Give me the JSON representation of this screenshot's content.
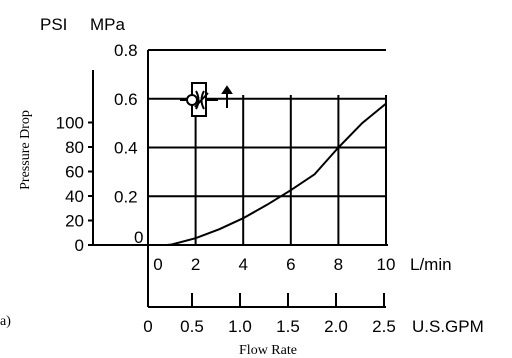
{
  "chart_data": {
    "type": "line",
    "xlabel": "Flow Rate",
    "ylabel": "Pressure Drop",
    "x_unit_primary": "L/min",
    "x_unit_secondary": "U.S.GPM",
    "y_unit_left": "PSI",
    "y_unit_right": "MPa",
    "x_ticks_lpm": [
      "0",
      "2",
      "4",
      "6",
      "8",
      "10"
    ],
    "x_ticks_gpm": [
      "0",
      "0.5",
      "1.0",
      "1.5",
      "2.0",
      "2.5"
    ],
    "y_ticks_psi": [
      "0",
      "20",
      "40",
      "60",
      "80",
      "100"
    ],
    "y_ticks_mpa": [
      "0",
      "0.2",
      "0.4",
      "0.6",
      "0.8"
    ],
    "xlim": [
      0,
      10
    ],
    "ylim_mpa": [
      0,
      0.8
    ],
    "grid": true,
    "corner_label": "a)",
    "series": [
      {
        "x": [
          0.8,
          1,
          2,
          3,
          4,
          5,
          6,
          7,
          8,
          9,
          10
        ],
        "y": [
          0,
          0.002,
          0.028,
          0.065,
          0.11,
          0.165,
          0.225,
          0.29,
          0.4,
          0.5,
          0.58
        ]
      }
    ]
  }
}
